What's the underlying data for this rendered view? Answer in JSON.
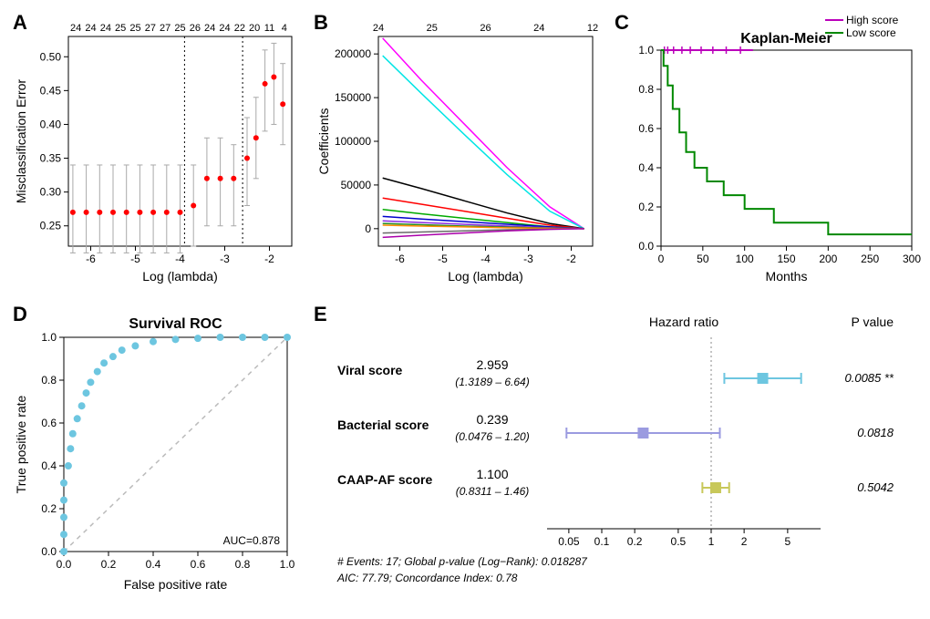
{
  "panelA": {
    "label": "A",
    "type": "errorbar-line",
    "xlabel": "Log (lambda)",
    "ylabel": "Misclassification Error",
    "xlim": [
      -6.5,
      -1.5
    ],
    "ylim": [
      0.22,
      0.53
    ],
    "xticks": [
      -6,
      -5,
      -4,
      -3,
      -2
    ],
    "yticks": [
      0.25,
      0.3,
      0.35,
      0.4,
      0.45,
      0.5
    ],
    "top_ticks": [
      "24",
      "24",
      "24",
      "25",
      "25",
      "27",
      "27",
      "25",
      "26",
      "24",
      "24",
      "22",
      "20",
      "11",
      "4"
    ],
    "vlines": [
      -3.9,
      -2.6
    ],
    "point_color": "#ff0000",
    "error_color": "#a9a9a9",
    "bg": "#ffffff",
    "points": [
      {
        "x": -6.4,
        "y": 0.27,
        "lo": 0.21,
        "hi": 0.34
      },
      {
        "x": -6.1,
        "y": 0.27,
        "lo": 0.21,
        "hi": 0.34
      },
      {
        "x": -5.8,
        "y": 0.27,
        "lo": 0.21,
        "hi": 0.34
      },
      {
        "x": -5.5,
        "y": 0.27,
        "lo": 0.21,
        "hi": 0.34
      },
      {
        "x": -5.2,
        "y": 0.27,
        "lo": 0.21,
        "hi": 0.34
      },
      {
        "x": -4.9,
        "y": 0.27,
        "lo": 0.21,
        "hi": 0.34
      },
      {
        "x": -4.6,
        "y": 0.27,
        "lo": 0.21,
        "hi": 0.34
      },
      {
        "x": -4.3,
        "y": 0.27,
        "lo": 0.21,
        "hi": 0.34
      },
      {
        "x": -4.0,
        "y": 0.27,
        "lo": 0.21,
        "hi": 0.34
      },
      {
        "x": -3.7,
        "y": 0.28,
        "lo": 0.22,
        "hi": 0.34
      },
      {
        "x": -3.4,
        "y": 0.32,
        "lo": 0.25,
        "hi": 0.38
      },
      {
        "x": -3.1,
        "y": 0.32,
        "lo": 0.25,
        "hi": 0.38
      },
      {
        "x": -2.8,
        "y": 0.32,
        "lo": 0.25,
        "hi": 0.37
      },
      {
        "x": -2.5,
        "y": 0.35,
        "lo": 0.28,
        "hi": 0.41
      },
      {
        "x": -2.3,
        "y": 0.38,
        "lo": 0.32,
        "hi": 0.44
      },
      {
        "x": -2.1,
        "y": 0.46,
        "lo": 0.39,
        "hi": 0.51
      },
      {
        "x": -1.9,
        "y": 0.47,
        "lo": 0.4,
        "hi": 0.52
      },
      {
        "x": -1.7,
        "y": 0.43,
        "lo": 0.37,
        "hi": 0.49
      }
    ]
  },
  "panelB": {
    "label": "B",
    "type": "multiline",
    "xlabel": "Log (lambda)",
    "ylabel": "Coefficients",
    "xlim": [
      -6.5,
      -1.5
    ],
    "ylim": [
      -20000,
      220000
    ],
    "xticks": [
      -6,
      -5,
      -4,
      -3,
      -2
    ],
    "yticks": [
      0,
      50000,
      100000,
      150000,
      200000
    ],
    "top_ticks": [
      "24",
      "",
      "25",
      "",
      "26",
      "",
      "24",
      "",
      "12"
    ],
    "bg": "#ffffff",
    "lines": [
      {
        "color": "#ff00ff",
        "pts": [
          [
            -6.4,
            218000
          ],
          [
            -5.5,
            170000
          ],
          [
            -4.5,
            120000
          ],
          [
            -3.5,
            70000
          ],
          [
            -2.5,
            25000
          ],
          [
            -1.7,
            0
          ]
        ]
      },
      {
        "color": "#00e5e5",
        "pts": [
          [
            -6.4,
            198000
          ],
          [
            -5.5,
            155000
          ],
          [
            -4.5,
            108000
          ],
          [
            -3.5,
            62000
          ],
          [
            -2.5,
            20000
          ],
          [
            -1.7,
            0
          ]
        ]
      },
      {
        "color": "#000000",
        "pts": [
          [
            -6.4,
            58000
          ],
          [
            -5.5,
            46000
          ],
          [
            -4.5,
            32000
          ],
          [
            -3.5,
            18000
          ],
          [
            -2.5,
            6000
          ],
          [
            -1.7,
            0
          ]
        ]
      },
      {
        "color": "#ff0000",
        "pts": [
          [
            -6.4,
            35000
          ],
          [
            -5.5,
            28000
          ],
          [
            -4.5,
            20000
          ],
          [
            -3.5,
            12000
          ],
          [
            -2.5,
            4000
          ],
          [
            -1.7,
            0
          ]
        ]
      },
      {
        "color": "#00aa00",
        "pts": [
          [
            -6.4,
            22000
          ],
          [
            -5.5,
            17000
          ],
          [
            -4.5,
            12000
          ],
          [
            -3.5,
            7000
          ],
          [
            -2.5,
            2000
          ],
          [
            -1.7,
            0
          ]
        ]
      },
      {
        "color": "#0000cc",
        "pts": [
          [
            -6.4,
            14000
          ],
          [
            -5.5,
            11000
          ],
          [
            -4.5,
            8000
          ],
          [
            -3.5,
            5000
          ],
          [
            -2.5,
            2000
          ],
          [
            -1.7,
            0
          ]
        ]
      },
      {
        "color": "#8a2be2",
        "pts": [
          [
            -6.4,
            9000
          ],
          [
            -5.5,
            7000
          ],
          [
            -4.5,
            5000
          ],
          [
            -3.5,
            3000
          ],
          [
            -2.5,
            1000
          ],
          [
            -1.7,
            0
          ]
        ]
      },
      {
        "color": "#228b22",
        "pts": [
          [
            -6.4,
            6000
          ],
          [
            -5.5,
            4500
          ],
          [
            -4.5,
            3000
          ],
          [
            -3.5,
            1800
          ],
          [
            -2.5,
            600
          ],
          [
            -1.7,
            0
          ]
        ]
      },
      {
        "color": "#ff8c00",
        "pts": [
          [
            -6.4,
            4000
          ],
          [
            -5.5,
            3000
          ],
          [
            -4.5,
            2000
          ],
          [
            -3.5,
            1000
          ],
          [
            -2.5,
            300
          ],
          [
            -1.7,
            0
          ]
        ]
      },
      {
        "color": "#696969",
        "pts": [
          [
            -6.4,
            -5000
          ],
          [
            -5.5,
            -3800
          ],
          [
            -4.5,
            -2500
          ],
          [
            -3.5,
            -1200
          ],
          [
            -2.5,
            -400
          ],
          [
            -1.7,
            0
          ]
        ]
      },
      {
        "color": "#aa00aa",
        "pts": [
          [
            -6.4,
            -10000
          ],
          [
            -5.5,
            -7500
          ],
          [
            -4.5,
            -5000
          ],
          [
            -3.5,
            -2500
          ],
          [
            -2.5,
            -800
          ],
          [
            -1.7,
            0
          ]
        ]
      }
    ]
  },
  "panelC": {
    "label": "C",
    "type": "kaplan-meier",
    "title": "Kaplan-Meier",
    "xlabel": "Months",
    "ylabel": "",
    "xlim": [
      0,
      300
    ],
    "ylim": [
      0,
      1.0
    ],
    "xticks": [
      0,
      50,
      100,
      150,
      200,
      250,
      300
    ],
    "yticks": [
      0,
      0.2,
      0.4,
      0.6,
      0.8,
      1.0
    ],
    "legend": [
      {
        "label": "High score",
        "color": "#bb00bb"
      },
      {
        "label": "Low score",
        "color": "#008800"
      }
    ],
    "curves": [
      {
        "color": "#bb00bb",
        "censor_color": "#bb00bb",
        "pts": [
          [
            0,
            1.0
          ],
          [
            110,
            1.0
          ]
        ],
        "censors": [
          [
            4,
            1.0
          ],
          [
            8,
            1.0
          ],
          [
            15,
            1.0
          ],
          [
            25,
            1.0
          ],
          [
            35,
            1.0
          ],
          [
            48,
            1.0
          ],
          [
            62,
            1.0
          ],
          [
            78,
            1.0
          ],
          [
            95,
            1.0
          ]
        ]
      },
      {
        "color": "#008800",
        "censor_color": "#008800",
        "pts": [
          [
            0,
            1.0
          ],
          [
            3,
            1.0
          ],
          [
            3,
            0.92
          ],
          [
            8,
            0.92
          ],
          [
            8,
            0.82
          ],
          [
            14,
            0.82
          ],
          [
            14,
            0.7
          ],
          [
            22,
            0.7
          ],
          [
            22,
            0.58
          ],
          [
            30,
            0.58
          ],
          [
            30,
            0.48
          ],
          [
            40,
            0.48
          ],
          [
            40,
            0.4
          ],
          [
            55,
            0.4
          ],
          [
            55,
            0.33
          ],
          [
            75,
            0.33
          ],
          [
            75,
            0.26
          ],
          [
            100,
            0.26
          ],
          [
            100,
            0.19
          ],
          [
            135,
            0.19
          ],
          [
            135,
            0.12
          ],
          [
            200,
            0.12
          ],
          [
            200,
            0.06
          ],
          [
            300,
            0.06
          ]
        ],
        "censors": []
      }
    ]
  },
  "panelD": {
    "label": "D",
    "type": "roc",
    "title": "Survival ROC",
    "xlabel": "False positive rate",
    "ylabel": "True positive rate",
    "xlim": [
      0,
      1.0
    ],
    "ylim": [
      0,
      1.0
    ],
    "xticks": [
      0,
      0.2,
      0.4,
      0.6,
      0.8,
      1.0
    ],
    "yticks": [
      0,
      0.2,
      0.4,
      0.6,
      0.8,
      1.0
    ],
    "auc_label": "AUC=0.878",
    "point_color": "#6dc6e0",
    "diag_color": "#bbbbbb",
    "points": [
      [
        0,
        0
      ],
      [
        0.0,
        0.08
      ],
      [
        0.0,
        0.16
      ],
      [
        0.0,
        0.24
      ],
      [
        0.0,
        0.32
      ],
      [
        0.02,
        0.4
      ],
      [
        0.03,
        0.48
      ],
      [
        0.04,
        0.55
      ],
      [
        0.06,
        0.62
      ],
      [
        0.08,
        0.68
      ],
      [
        0.1,
        0.74
      ],
      [
        0.12,
        0.79
      ],
      [
        0.15,
        0.84
      ],
      [
        0.18,
        0.88
      ],
      [
        0.22,
        0.91
      ],
      [
        0.26,
        0.94
      ],
      [
        0.32,
        0.96
      ],
      [
        0.4,
        0.98
      ],
      [
        0.5,
        0.99
      ],
      [
        0.6,
        0.995
      ],
      [
        0.7,
        1.0
      ],
      [
        0.8,
        1.0
      ],
      [
        0.9,
        1.0
      ],
      [
        1.0,
        1.0
      ]
    ]
  },
  "panelE": {
    "label": "E",
    "type": "forest",
    "title_hr": "Hazard ratio",
    "title_p": "P value",
    "xlim_log": [
      -1.5,
      1.0
    ],
    "xticks": [
      0.05,
      0.1,
      0.2,
      0.5,
      1,
      2,
      5
    ],
    "ref_line": 1,
    "ref_color": "#888888",
    "rows": [
      {
        "name": "Viral score",
        "hr": "2.959",
        "ci": "(1.3189 – 6.64)",
        "lo": 1.3189,
        "hi": 6.64,
        "est": 2.959,
        "p": "0.0085 **",
        "color": "#6dc6e0"
      },
      {
        "name": "Bacterial score",
        "hr": "0.239",
        "ci": "(0.0476 – 1.20)",
        "lo": 0.0476,
        "hi": 1.2,
        "est": 0.239,
        "p": "0.0818",
        "color": "#9b9be0"
      },
      {
        "name": "CAAP-AF score",
        "hr": "1.100",
        "ci": "(0.8311 – 1.46)",
        "lo": 0.8311,
        "hi": 1.46,
        "est": 1.1,
        "p": "0.5042",
        "color": "#c8c85a"
      }
    ],
    "footer1": "# Events: 17; Global p-value (Log−Rank): 0.018287",
    "footer2": "AIC: 77.79; Concordance Index: 0.78"
  }
}
